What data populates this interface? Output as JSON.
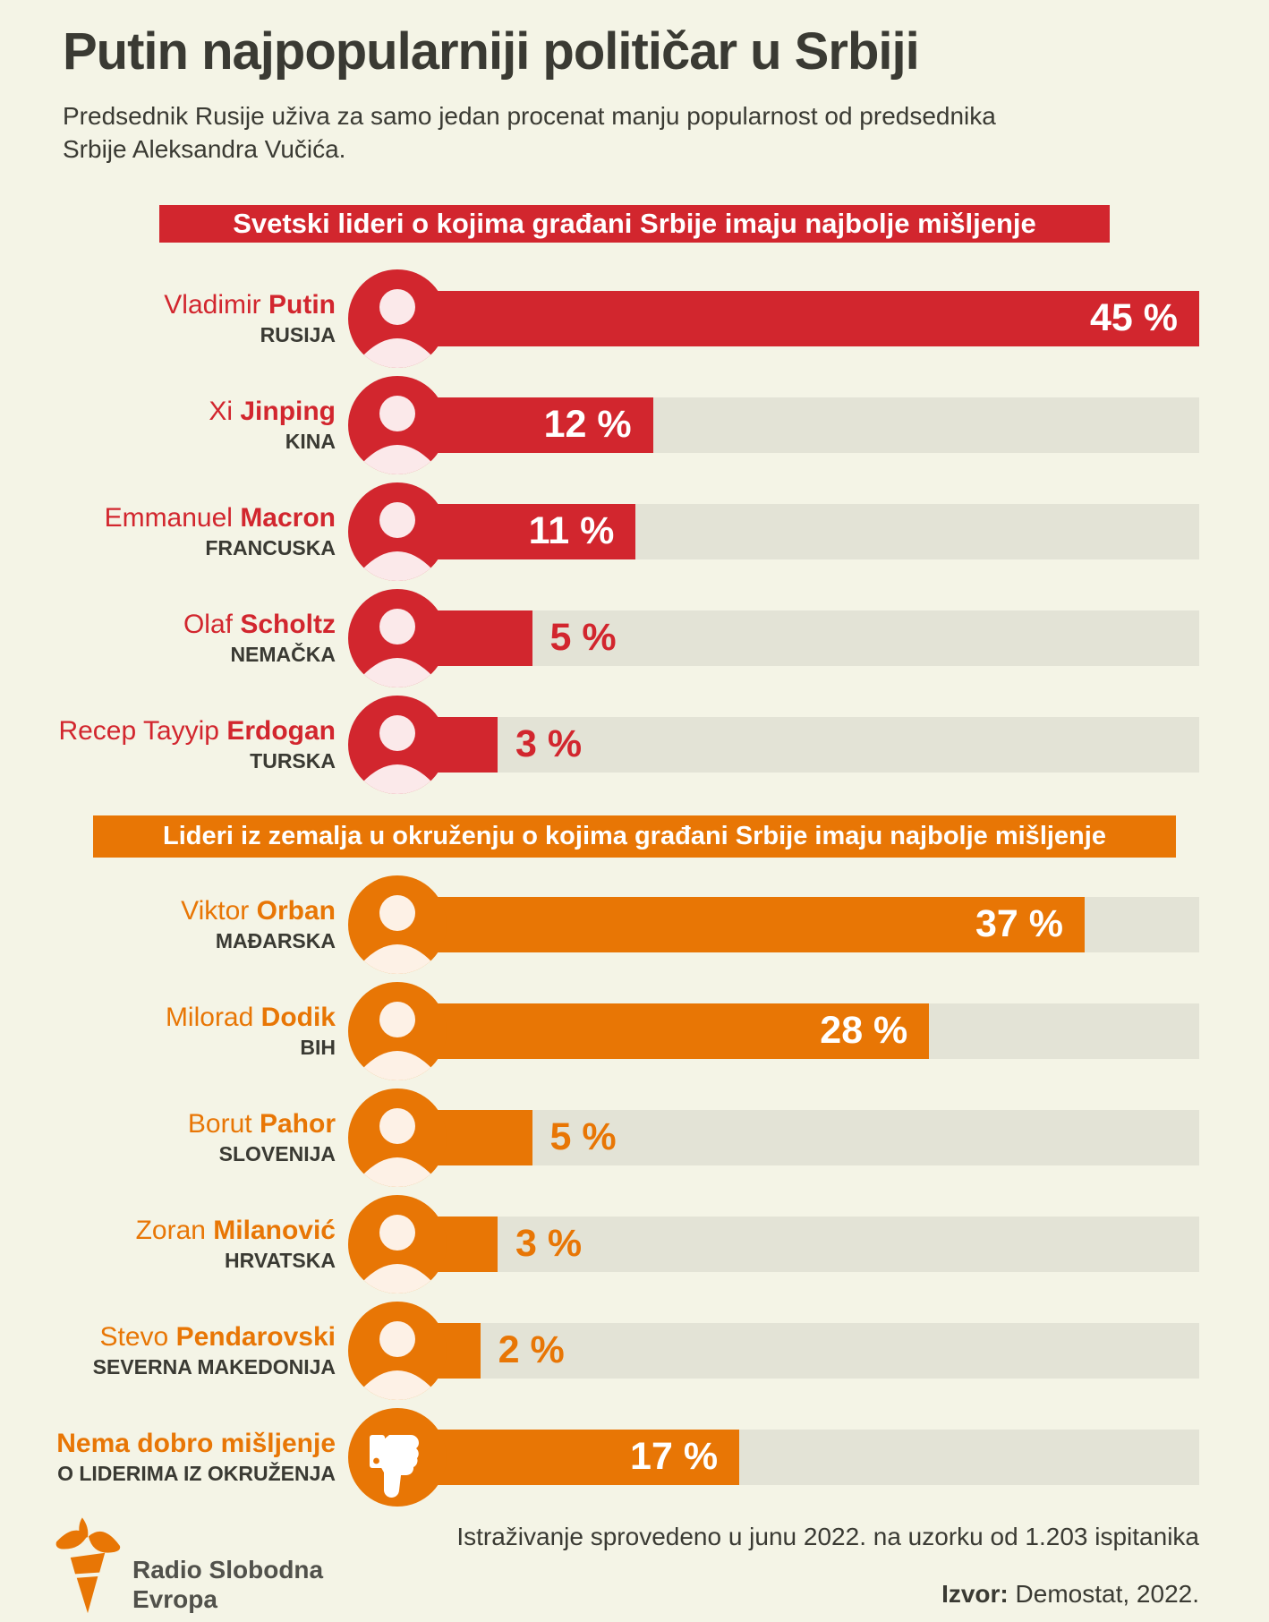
{
  "page": {
    "title": "Putin najpopularniji političar u Srbiji",
    "subtitle_line1": "Predsednik Rusije uživa za samo jedan procenat manju popularnost od predsednika",
    "subtitle_line2": "Srbije Aleksandra Vučića."
  },
  "colors": {
    "background": "#f4f4e6",
    "red": "#d2262e",
    "orange": "#e87605",
    "bar_track": "#e3e3d6",
    "text_dark": "#3a3a33"
  },
  "sections": [
    {
      "header": "Svetski lideri o kojima građani Srbije imaju najbolje mišljenje",
      "color": "#d2262e",
      "rows": [
        {
          "first": "Vladimir",
          "last": "Putin",
          "country": "RUSIJA",
          "value": 45,
          "pct_label": "45 %"
        },
        {
          "first": "Xi",
          "last": "Jinping",
          "country": "KINA",
          "value": 12,
          "pct_label": "12 %"
        },
        {
          "first": "Emmanuel",
          "last": "Macron",
          "country": "FRANCUSKA",
          "value": 11,
          "pct_label": "11 %"
        },
        {
          "first": "Olaf",
          "last": "Scholtz",
          "country": "NEMAČKA",
          "value": 5,
          "pct_label": "5 %"
        },
        {
          "first": "Recep Tayyip",
          "last": "Erdogan",
          "country": "TURSKA",
          "value": 3,
          "pct_label": "3 %"
        }
      ]
    },
    {
      "header": "Lideri iz zemalja u okruženju o kojima građani Srbije imaju najbolje mišljenje",
      "color": "#e87605",
      "rows": [
        {
          "first": "Viktor",
          "last": "Orban",
          "country": "MAĐARSKA",
          "value": 37,
          "pct_label": "37 %"
        },
        {
          "first": "Milorad",
          "last": "Dodik",
          "country": "BIH",
          "value": 28,
          "pct_label": "28 %"
        },
        {
          "first": "Borut",
          "last": "Pahor",
          "country": "SLOVENIJA",
          "value": 5,
          "pct_label": "5 %"
        },
        {
          "first": "Zoran",
          "last": "Milanović",
          "country": "HRVATSKA",
          "value": 3,
          "pct_label": "3 %"
        },
        {
          "first": "Stevo",
          "last": "Pendarovski",
          "country": "SEVERNA MAKEDONIJA",
          "value": 2,
          "pct_label": "2 %"
        },
        {
          "first": "",
          "last": "Nema dobro mišljenje",
          "country": "O LIDERIMA IZ OKRUŽENJA",
          "value": 17,
          "pct_label": "17 %",
          "icon": "thumbs-down-icon"
        }
      ]
    }
  ],
  "footer": {
    "logo_line1": "Radio Slobodna",
    "logo_line2": "Evropa",
    "survey_note": "Istraživanje sprovedeno u junu 2022. na uzorku od 1.203 ispitanika",
    "source_label": "Izvor:",
    "source_value": " Demostat, 2022."
  },
  "chart_data": [
    {
      "type": "bar",
      "orientation": "horizontal",
      "title": "Svetski lideri o kojima građani Srbije imaju najbolje mišljenje",
      "categories": [
        "Vladimir Putin (RUSIJA)",
        "Xi Jinping (KINA)",
        "Emmanuel Macron (FRANCUSKA)",
        "Olaf Scholtz (NEMAČKA)",
        "Recep Tayyip Erdogan (TURSKA)"
      ],
      "values": [
        45,
        12,
        11,
        5,
        3
      ],
      "unit": "%",
      "xlim": [
        0,
        45
      ],
      "bar_color": "#d2262e",
      "grid": false,
      "legend": false
    },
    {
      "type": "bar",
      "orientation": "horizontal",
      "title": "Lideri iz zemalja u okruženju o kojima građani Srbije imaju najbolje mišljenje",
      "categories": [
        "Viktor Orban (MAĐARSKA)",
        "Milorad Dodik (BIH)",
        "Borut Pahor (SLOVENIJA)",
        "Zoran Milanović (HRVATSKA)",
        "Stevo Pendarovski (SEVERNA MAKEDONIJA)",
        "Nema dobro mišljenje o liderima iz okruženja"
      ],
      "values": [
        37,
        28,
        5,
        3,
        2,
        17
      ],
      "unit": "%",
      "xlim": [
        0,
        45
      ],
      "bar_color": "#e87605",
      "grid": false,
      "legend": false
    }
  ]
}
